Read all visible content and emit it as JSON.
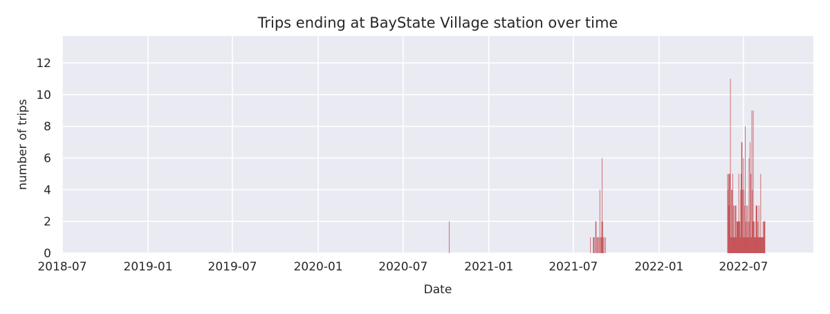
{
  "chart_data": {
    "type": "bar",
    "title": "Trips ending at BayState Village station over time",
    "xlabel": "Date",
    "ylabel": "number of trips",
    "x_tick_labels": [
      "2018-07",
      "2019-01",
      "2019-07",
      "2020-01",
      "2020-07",
      "2021-01",
      "2021-07",
      "2022-01",
      "2022-07"
    ],
    "x_ticks": [
      "2018-07-01",
      "2019-01-01",
      "2019-07-01",
      "2020-01-01",
      "2020-07-01",
      "2021-01-01",
      "2021-07-01",
      "2022-01-01",
      "2022-07-01"
    ],
    "y_ticks": [
      0,
      2,
      4,
      6,
      8,
      10,
      12
    ],
    "xlim": [
      "2018-07-01",
      "2022-11-28"
    ],
    "ylim": [
      0,
      13.7
    ],
    "grid": true,
    "bar_color": "#c44e52",
    "background_color": "#eaeaf2",
    "series": [
      {
        "values": [
          [
            "2020-10-08",
            2
          ],
          [
            "2021-08-07",
            1
          ],
          [
            "2021-08-13",
            1
          ],
          [
            "2021-08-14",
            1
          ],
          [
            "2021-08-15",
            1
          ],
          [
            "2021-08-18",
            2
          ],
          [
            "2021-08-19",
            2
          ],
          [
            "2021-08-21",
            1
          ],
          [
            "2021-08-23",
            1
          ],
          [
            "2021-08-25",
            1
          ],
          [
            "2021-08-27",
            4
          ],
          [
            "2021-08-28",
            1
          ],
          [
            "2021-08-30",
            1
          ],
          [
            "2021-08-31",
            2
          ],
          [
            "2021-09-01",
            6
          ],
          [
            "2021-09-02",
            2
          ],
          [
            "2021-09-03",
            1
          ],
          [
            "2021-09-05",
            1
          ],
          [
            "2021-09-08",
            1
          ],
          [
            "2022-05-28",
            5
          ],
          [
            "2022-05-29",
            4
          ],
          [
            "2022-05-30",
            5
          ],
          [
            "2022-05-31",
            3
          ],
          [
            "2022-06-01",
            5
          ],
          [
            "2022-06-02",
            5
          ],
          [
            "2022-06-03",
            11
          ],
          [
            "2022-06-04",
            1
          ],
          [
            "2022-06-05",
            4
          ],
          [
            "2022-06-06",
            1
          ],
          [
            "2022-06-07",
            4
          ],
          [
            "2022-06-08",
            5
          ],
          [
            "2022-06-09",
            1
          ],
          [
            "2022-06-10",
            3
          ],
          [
            "2022-06-11",
            1
          ],
          [
            "2022-06-12",
            3
          ],
          [
            "2022-06-13",
            1
          ],
          [
            "2022-06-14",
            3
          ],
          [
            "2022-06-15",
            3
          ],
          [
            "2022-06-16",
            1
          ],
          [
            "2022-06-17",
            2
          ],
          [
            "2022-06-18",
            2
          ],
          [
            "2022-06-19",
            2
          ],
          [
            "2022-06-20",
            2
          ],
          [
            "2022-06-21",
            5
          ],
          [
            "2022-06-22",
            2
          ],
          [
            "2022-06-23",
            2
          ],
          [
            "2022-06-24",
            1
          ],
          [
            "2022-06-25",
            4
          ],
          [
            "2022-06-26",
            5
          ],
          [
            "2022-06-27",
            7
          ],
          [
            "2022-06-28",
            7
          ],
          [
            "2022-06-29",
            4
          ],
          [
            "2022-06-30",
            1
          ],
          [
            "2022-07-01",
            6
          ],
          [
            "2022-07-02",
            4
          ],
          [
            "2022-07-03",
            1
          ],
          [
            "2022-07-04",
            3
          ],
          [
            "2022-07-05",
            8
          ],
          [
            "2022-07-06",
            2
          ],
          [
            "2022-07-07",
            1
          ],
          [
            "2022-07-08",
            3
          ],
          [
            "2022-07-09",
            1
          ],
          [
            "2022-07-10",
            3
          ],
          [
            "2022-07-11",
            2
          ],
          [
            "2022-07-12",
            1
          ],
          [
            "2022-07-13",
            6
          ],
          [
            "2022-07-14",
            2
          ],
          [
            "2022-07-15",
            7
          ],
          [
            "2022-07-16",
            1
          ],
          [
            "2022-07-17",
            5
          ],
          [
            "2022-07-18",
            1
          ],
          [
            "2022-07-19",
            9
          ],
          [
            "2022-07-20",
            4
          ],
          [
            "2022-07-21",
            2
          ],
          [
            "2022-07-22",
            9
          ],
          [
            "2022-07-23",
            2
          ],
          [
            "2022-07-24",
            1
          ],
          [
            "2022-07-25",
            2
          ],
          [
            "2022-07-26",
            1
          ],
          [
            "2022-07-27",
            1
          ],
          [
            "2022-07-28",
            3
          ],
          [
            "2022-07-29",
            3
          ],
          [
            "2022-07-30",
            3
          ],
          [
            "2022-07-31",
            1
          ],
          [
            "2022-08-01",
            2
          ],
          [
            "2022-08-02",
            1
          ],
          [
            "2022-08-03",
            3
          ],
          [
            "2022-08-04",
            1
          ],
          [
            "2022-08-05",
            1
          ],
          [
            "2022-08-06",
            1
          ],
          [
            "2022-08-07",
            5
          ],
          [
            "2022-08-08",
            1
          ],
          [
            "2022-08-09",
            1
          ],
          [
            "2022-08-10",
            1
          ],
          [
            "2022-08-11",
            1
          ],
          [
            "2022-08-12",
            2
          ],
          [
            "2022-08-13",
            1
          ],
          [
            "2022-08-14",
            2
          ],
          [
            "2022-08-15",
            2
          ],
          [
            "2022-08-16",
            2
          ]
        ]
      }
    ]
  }
}
